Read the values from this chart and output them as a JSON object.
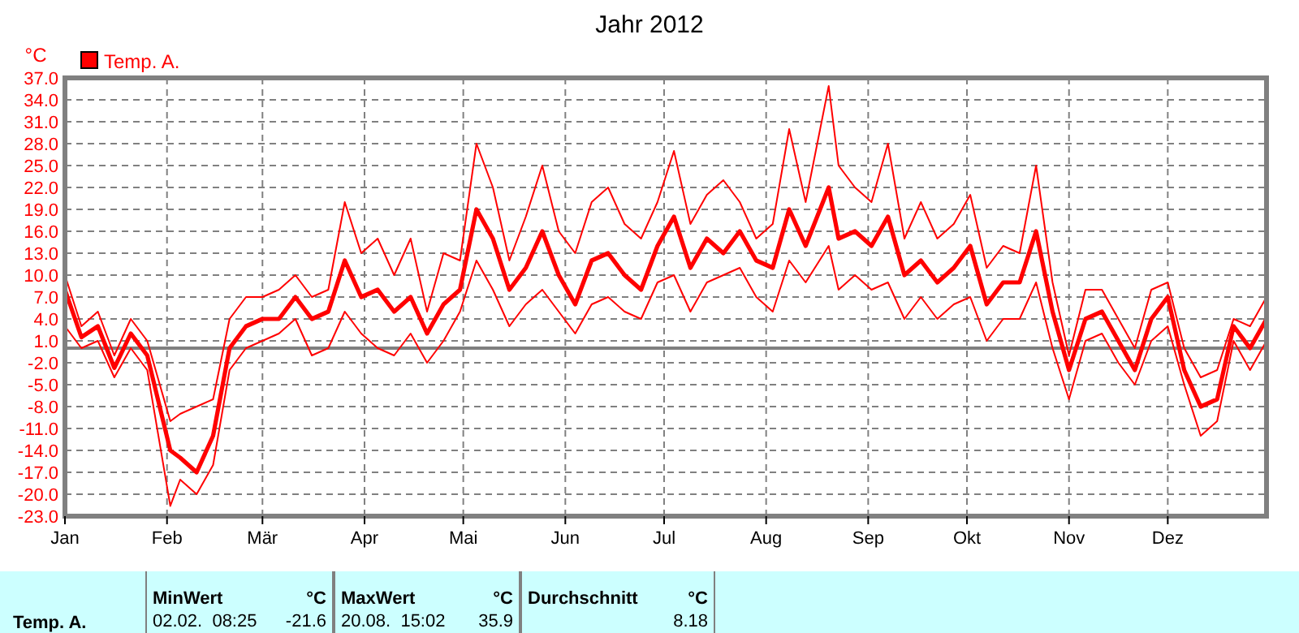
{
  "chart_data": {
    "type": "line",
    "title": "Jahr 2012",
    "ylabel": "°C",
    "x": [
      "2012-01-01",
      "2012-01-06",
      "2012-01-11",
      "2012-01-16",
      "2012-01-21",
      "2012-01-26",
      "2012-02-02",
      "2012-02-05",
      "2012-02-10",
      "2012-02-15",
      "2012-02-20",
      "2012-02-25",
      "2012-03-01",
      "2012-03-06",
      "2012-03-11",
      "2012-03-16",
      "2012-03-21",
      "2012-03-26",
      "2012-03-31",
      "2012-04-05",
      "2012-04-10",
      "2012-04-15",
      "2012-04-20",
      "2012-04-25",
      "2012-04-30",
      "2012-05-05",
      "2012-05-10",
      "2012-05-15",
      "2012-05-20",
      "2012-05-25",
      "2012-05-30",
      "2012-06-04",
      "2012-06-09",
      "2012-06-14",
      "2012-06-19",
      "2012-06-24",
      "2012-06-29",
      "2012-07-04",
      "2012-07-09",
      "2012-07-14",
      "2012-07-19",
      "2012-07-24",
      "2012-07-29",
      "2012-08-03",
      "2012-08-08",
      "2012-08-13",
      "2012-08-20",
      "2012-08-23",
      "2012-08-28",
      "2012-09-02",
      "2012-09-07",
      "2012-09-12",
      "2012-09-17",
      "2012-09-22",
      "2012-09-27",
      "2012-10-02",
      "2012-10-07",
      "2012-10-12",
      "2012-10-17",
      "2012-10-22",
      "2012-10-27",
      "2012-11-01",
      "2012-11-06",
      "2012-11-11",
      "2012-11-16",
      "2012-11-21",
      "2012-11-26",
      "2012-12-01",
      "2012-12-06",
      "2012-12-11",
      "2012-12-16",
      "2012-12-21",
      "2012-12-26",
      "2012-12-31"
    ],
    "series": [
      {
        "color": "#ff0000",
        "values": [
          10,
          3,
          5,
          -1,
          4,
          1,
          -10,
          -9,
          -8,
          -7,
          4,
          7,
          7,
          8,
          10,
          7,
          8,
          20,
          13,
          15,
          10,
          15,
          5,
          13,
          12,
          28,
          22,
          12,
          18,
          25,
          16,
          13,
          20,
          22,
          17,
          15,
          20,
          27,
          17,
          21,
          23,
          20,
          15,
          17,
          30,
          20,
          35.9,
          25,
          22,
          20,
          28,
          15,
          20,
          15,
          17,
          21,
          11,
          14,
          13,
          25,
          9,
          -1,
          8,
          8,
          4,
          0,
          8,
          9,
          0,
          -4,
          -3,
          4,
          3,
          7
        ]
      },
      {
        "color": "#ff0000",
        "values": [
          3,
          0,
          1,
          -4,
          0,
          -3,
          -21.6,
          -18,
          -20,
          -16,
          -3,
          0,
          1,
          2,
          4,
          -1,
          0,
          5,
          2,
          0,
          -1,
          2,
          -2,
          1,
          5,
          12,
          8,
          3,
          6,
          8,
          5,
          2,
          6,
          7,
          5,
          4,
          9,
          10,
          5,
          9,
          10,
          11,
          7,
          5,
          12,
          9,
          14,
          8,
          10,
          8,
          9,
          4,
          7,
          4,
          6,
          7,
          1,
          4,
          4,
          9,
          0,
          -7,
          1,
          2,
          -2,
          -5,
          1,
          3,
          -5,
          -12,
          -10,
          1,
          -3,
          1
        ]
      },
      {
        "name": "Temp. A.",
        "color": "#ff0000",
        "values": [
          8,
          1.5,
          3,
          -2.7,
          2,
          -1,
          -14,
          -15,
          -17,
          -12,
          0,
          3,
          4,
          4,
          7,
          4,
          5,
          12,
          7,
          8,
          5,
          7,
          2,
          6,
          8,
          19,
          15,
          8,
          11,
          16,
          10,
          6,
          12,
          13,
          10,
          8,
          14,
          18,
          11,
          15,
          13,
          16,
          12,
          11,
          19,
          14,
          22,
          15,
          16,
          14,
          18,
          10,
          12,
          9,
          11,
          14,
          6,
          9,
          9,
          16,
          5,
          -3,
          4,
          5,
          1,
          -3,
          4,
          7,
          -3,
          -8,
          -7,
          3,
          0,
          4
        ]
      }
    ],
    "xlim": [
      "2012-01-01",
      "2012-12-31"
    ],
    "xticks": [
      {
        "value": "2012-01-01",
        "label": "Jan"
      },
      {
        "value": "2012-02-01",
        "label": "Feb"
      },
      {
        "value": "2012-03-01",
        "label": "Mär"
      },
      {
        "value": "2012-04-01",
        "label": "Apr"
      },
      {
        "value": "2012-05-01",
        "label": "Mai"
      },
      {
        "value": "2012-06-01",
        "label": "Jun"
      },
      {
        "value": "2012-07-01",
        "label": "Jul"
      },
      {
        "value": "2012-08-01",
        "label": "Aug"
      },
      {
        "value": "2012-09-01",
        "label": "Sep"
      },
      {
        "value": "2012-10-01",
        "label": "Okt"
      },
      {
        "value": "2012-11-01",
        "label": "Nov"
      },
      {
        "value": "2012-12-01",
        "label": "Dez"
      }
    ],
    "ylim": [
      -23,
      37
    ],
    "yticks": [
      {
        "value": 37,
        "label": "37.0"
      },
      {
        "value": 34,
        "label": "34.0"
      },
      {
        "value": 31,
        "label": "31.0"
      },
      {
        "value": 28,
        "label": "28.0"
      },
      {
        "value": 25,
        "label": "25.0"
      },
      {
        "value": 22,
        "label": "22.0"
      },
      {
        "value": 19,
        "label": "19.0"
      },
      {
        "value": 16,
        "label": "16.0"
      },
      {
        "value": 13,
        "label": "13.0"
      },
      {
        "value": 10,
        "label": "10.0"
      },
      {
        "value": 7,
        "label": "7.0"
      },
      {
        "value": 4,
        "label": "4.0"
      },
      {
        "value": 1,
        "label": "1.0"
      },
      {
        "value": -2,
        "label": "-2.0"
      },
      {
        "value": -5,
        "label": "-5.0"
      },
      {
        "value": -8,
        "label": "-8.0"
      },
      {
        "value": -11,
        "label": "-11.0"
      },
      {
        "value": -14,
        "label": "-14.0"
      },
      {
        "value": -17,
        "label": "-17.0"
      },
      {
        "value": -20,
        "label": "-20.0"
      },
      {
        "value": -23,
        "label": "-23.0"
      }
    ],
    "grid": true,
    "legend": "top left",
    "marker": "none",
    "line_style": "solid",
    "ref_lines": [
      {
        "axis": "y",
        "value": 0,
        "color": "#808080"
      }
    ],
    "annotations": [
      "MinWert",
      "°C",
      "02.02.  08:25",
      "-21.6",
      "MaxWert",
      "°C",
      "20.08.  15:02",
      "35.9",
      "Durchschnitt",
      "°C",
      "8.18"
    ]
  }
}
